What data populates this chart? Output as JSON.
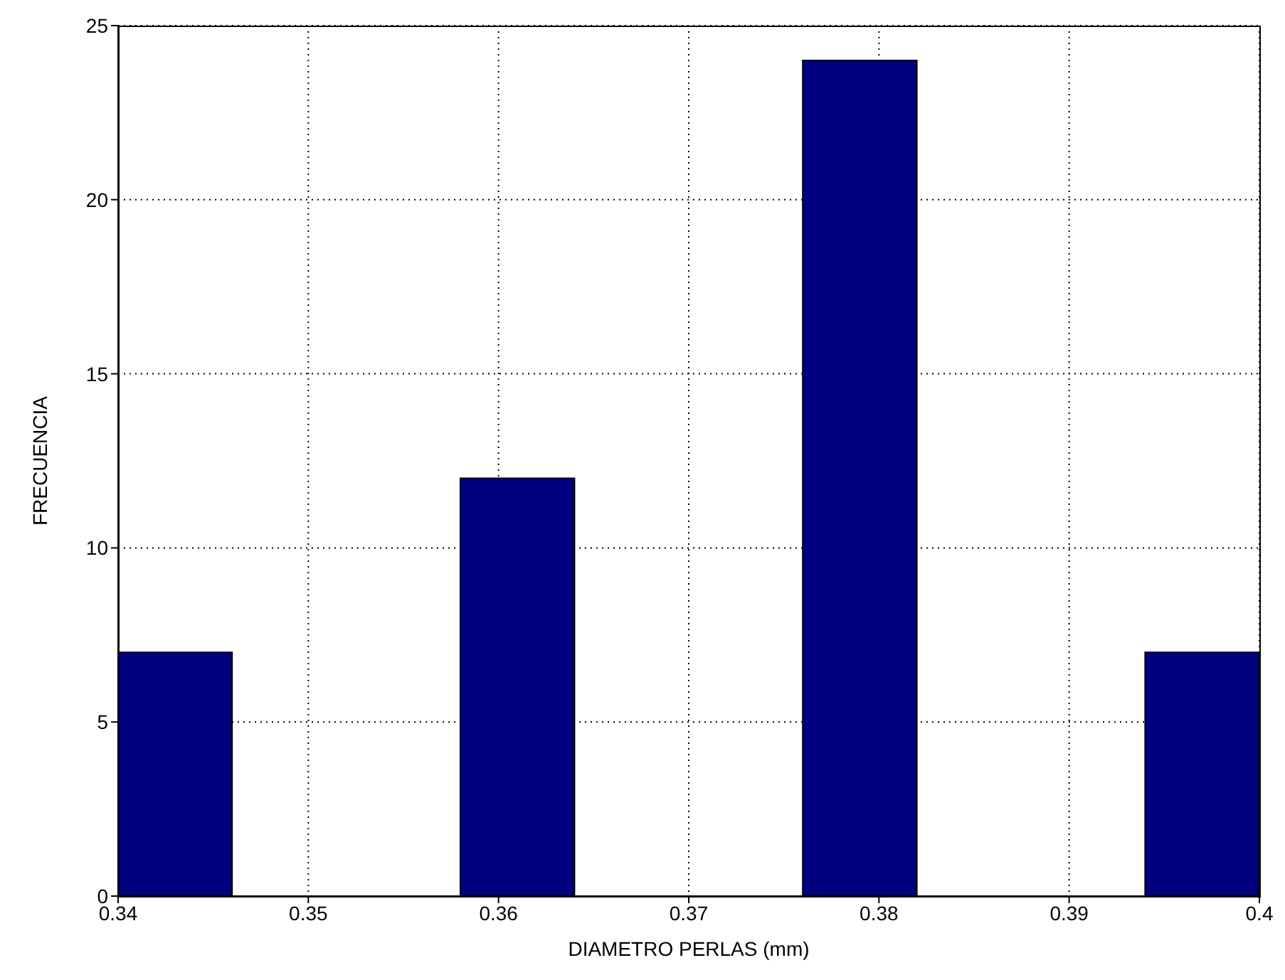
{
  "chart_data": {
    "type": "histogram",
    "xlabel": "DIAMETRO PERLAS (mm)",
    "ylabel": "FRECUENCIA",
    "bins": [
      0.34,
      0.346,
      0.352,
      0.358,
      0.364,
      0.37,
      0.376,
      0.382,
      0.388,
      0.394,
      0.4
    ],
    "values": [
      7,
      0,
      0,
      12,
      0,
      0,
      24,
      0,
      0,
      7
    ],
    "color": "#000080",
    "xlim": [
      0.34,
      0.4
    ],
    "xticks": [
      0.34,
      0.35,
      0.36,
      0.37,
      0.38,
      0.39,
      0.4
    ],
    "ylim": [
      0,
      25
    ],
    "yticks": [
      0,
      5,
      10,
      15,
      20,
      25
    ],
    "grid": true
  }
}
